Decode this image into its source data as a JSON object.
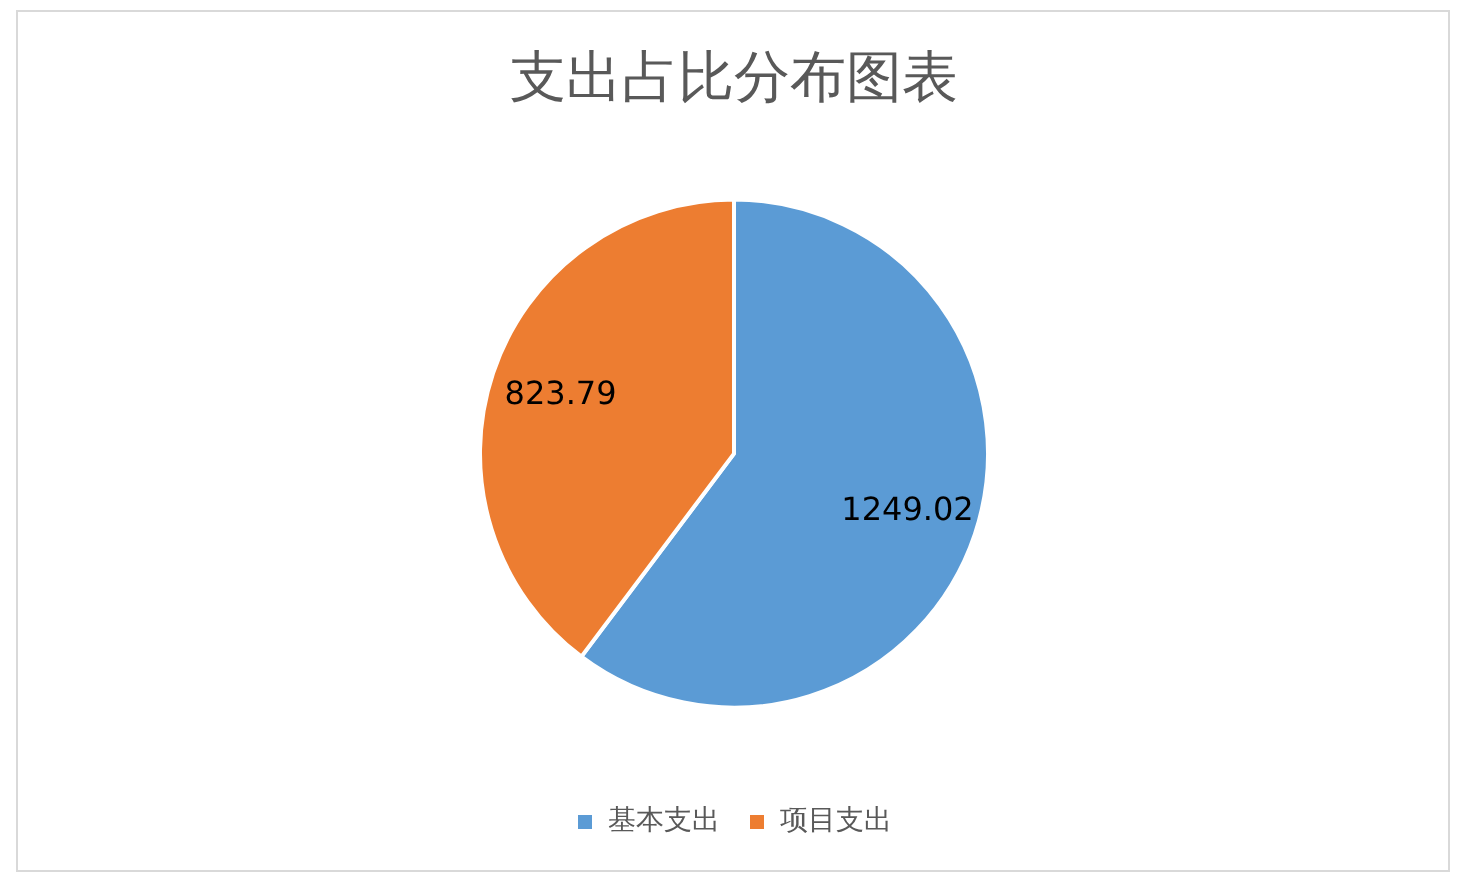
{
  "chart_data": {
    "type": "pie",
    "title": "支出占比分布图表",
    "categories": [
      "基本支出",
      "项目支出"
    ],
    "values": [
      1249.02,
      823.79
    ],
    "colors": [
      "#5b9bd5",
      "#ed7d31"
    ],
    "data_labels": true,
    "legend": "bottom"
  }
}
